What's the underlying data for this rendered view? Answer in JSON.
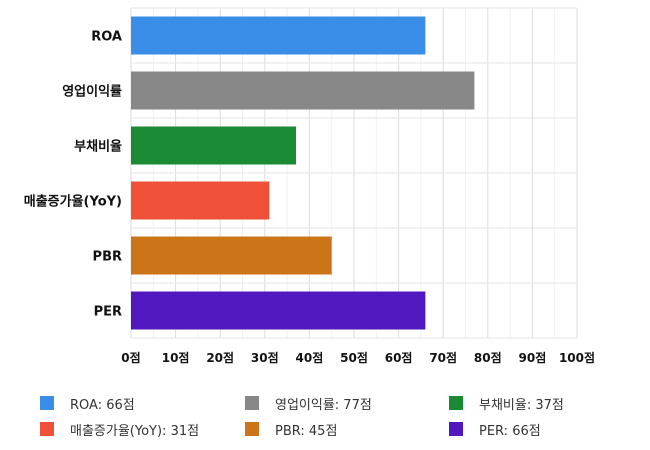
{
  "chart_data": {
    "type": "bar",
    "orientation": "horizontal",
    "categories": [
      "ROA",
      "영업이익률",
      "부채비율",
      "매출증가율(YoY)",
      "PBR",
      "PER"
    ],
    "values": [
      66,
      77,
      37,
      31,
      45,
      66
    ],
    "colors": [
      "#3a8ee8",
      "#888888",
      "#1a8a34",
      "#ee5038",
      "#cc7418",
      "#5218c0"
    ],
    "xlim": [
      0,
      100
    ],
    "xticks": [
      0,
      10,
      20,
      30,
      40,
      50,
      60,
      70,
      80,
      90,
      100
    ],
    "tick_labels": [
      "0점",
      "10점",
      "20점",
      "30점",
      "40점",
      "50점",
      "60점",
      "70점",
      "80점",
      "90점",
      "100점"
    ],
    "grid": true,
    "legend_position": "bottom",
    "legend": [
      "ROA: 66점",
      "영업이익률: 77점",
      "부채비율: 37점",
      "매출증가율(YoY): 31점",
      "PBR: 45점",
      "PER: 66점"
    ]
  }
}
